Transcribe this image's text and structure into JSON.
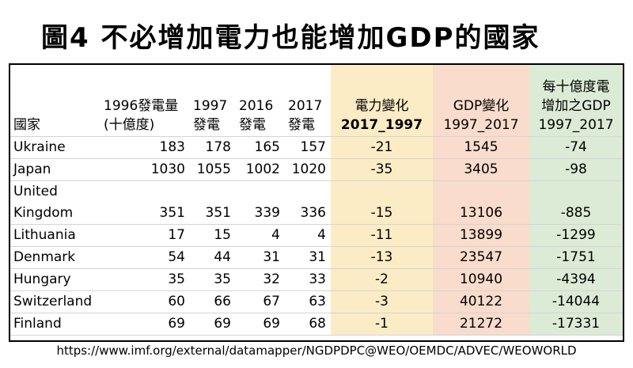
{
  "title": "圖4 不必增加電力也能增加GDP的國家",
  "headers": {
    "country": "國家",
    "gen1996_l1": "1996發電量",
    "gen1996_l2": "(十億度)",
    "gen1997_l1": "1997",
    "gen1997_l2": "發電",
    "gen2016_l1": "2016",
    "gen2016_l2": "發電",
    "gen2017_l1": "2017",
    "gen2017_l2": "發電",
    "power_change_l1": "電力變化",
    "power_change_l2": "2017_1997",
    "gdp_change_l1": "GDP變化",
    "gdp_change_l2": "1997_2017",
    "gdp_per_twh_l1": "每十億度電",
    "gdp_per_twh_l2": "增加之GDP",
    "gdp_per_twh_l3": "1997_2017"
  },
  "rows": [
    {
      "country": "Ukraine",
      "g1996": "183",
      "g1997": "178",
      "g2016": "165",
      "g2017": "157",
      "power_change": "-21",
      "gdp_change": "1545",
      "gdp_per": "-74"
    },
    {
      "country": "Japan",
      "g1996": "1030",
      "g1997": "1055",
      "g2016": "1002",
      "g2017": "1020",
      "power_change": "-35",
      "gdp_change": "3405",
      "gdp_per": "-98"
    },
    {
      "country_l1": "United",
      "country_l2": "Kingdom",
      "g1996": "351",
      "g1997": "351",
      "g2016": "339",
      "g2017": "336",
      "power_change": "-15",
      "gdp_change": "13106",
      "gdp_per": "-885"
    },
    {
      "country": "Lithuania",
      "g1996": "17",
      "g1997": "15",
      "g2016": "4",
      "g2017": "4",
      "power_change": "-11",
      "gdp_change": "13899",
      "gdp_per": "-1299"
    },
    {
      "country": "Denmark",
      "g1996": "54",
      "g1997": "44",
      "g2016": "31",
      "g2017": "31",
      "power_change": "-13",
      "gdp_change": "23547",
      "gdp_per": "-1751"
    },
    {
      "country": "Hungary",
      "g1996": "35",
      "g1997": "35",
      "g2016": "32",
      "g2017": "33",
      "power_change": "-2",
      "gdp_change": "10940",
      "gdp_per": "-4394"
    },
    {
      "country": "Switzerland",
      "g1996": "60",
      "g1997": "66",
      "g2016": "67",
      "g2017": "63",
      "power_change": "-3",
      "gdp_change": "40122",
      "gdp_per": "-14044"
    },
    {
      "country": "Finland",
      "g1996": "69",
      "g1997": "69",
      "g2016": "69",
      "g2017": "68",
      "power_change": "-1",
      "gdp_change": "21272",
      "gdp_per": "-17331"
    }
  ],
  "source": "https://www.imf.org/external/datamapper/NGDPDPC@WEO/OEMDC/ADVEC/WEOWORLD",
  "colors": {
    "power_col": "#fcecc6",
    "gdp_col": "#f9dccc",
    "per_col": "#dcebd6"
  }
}
